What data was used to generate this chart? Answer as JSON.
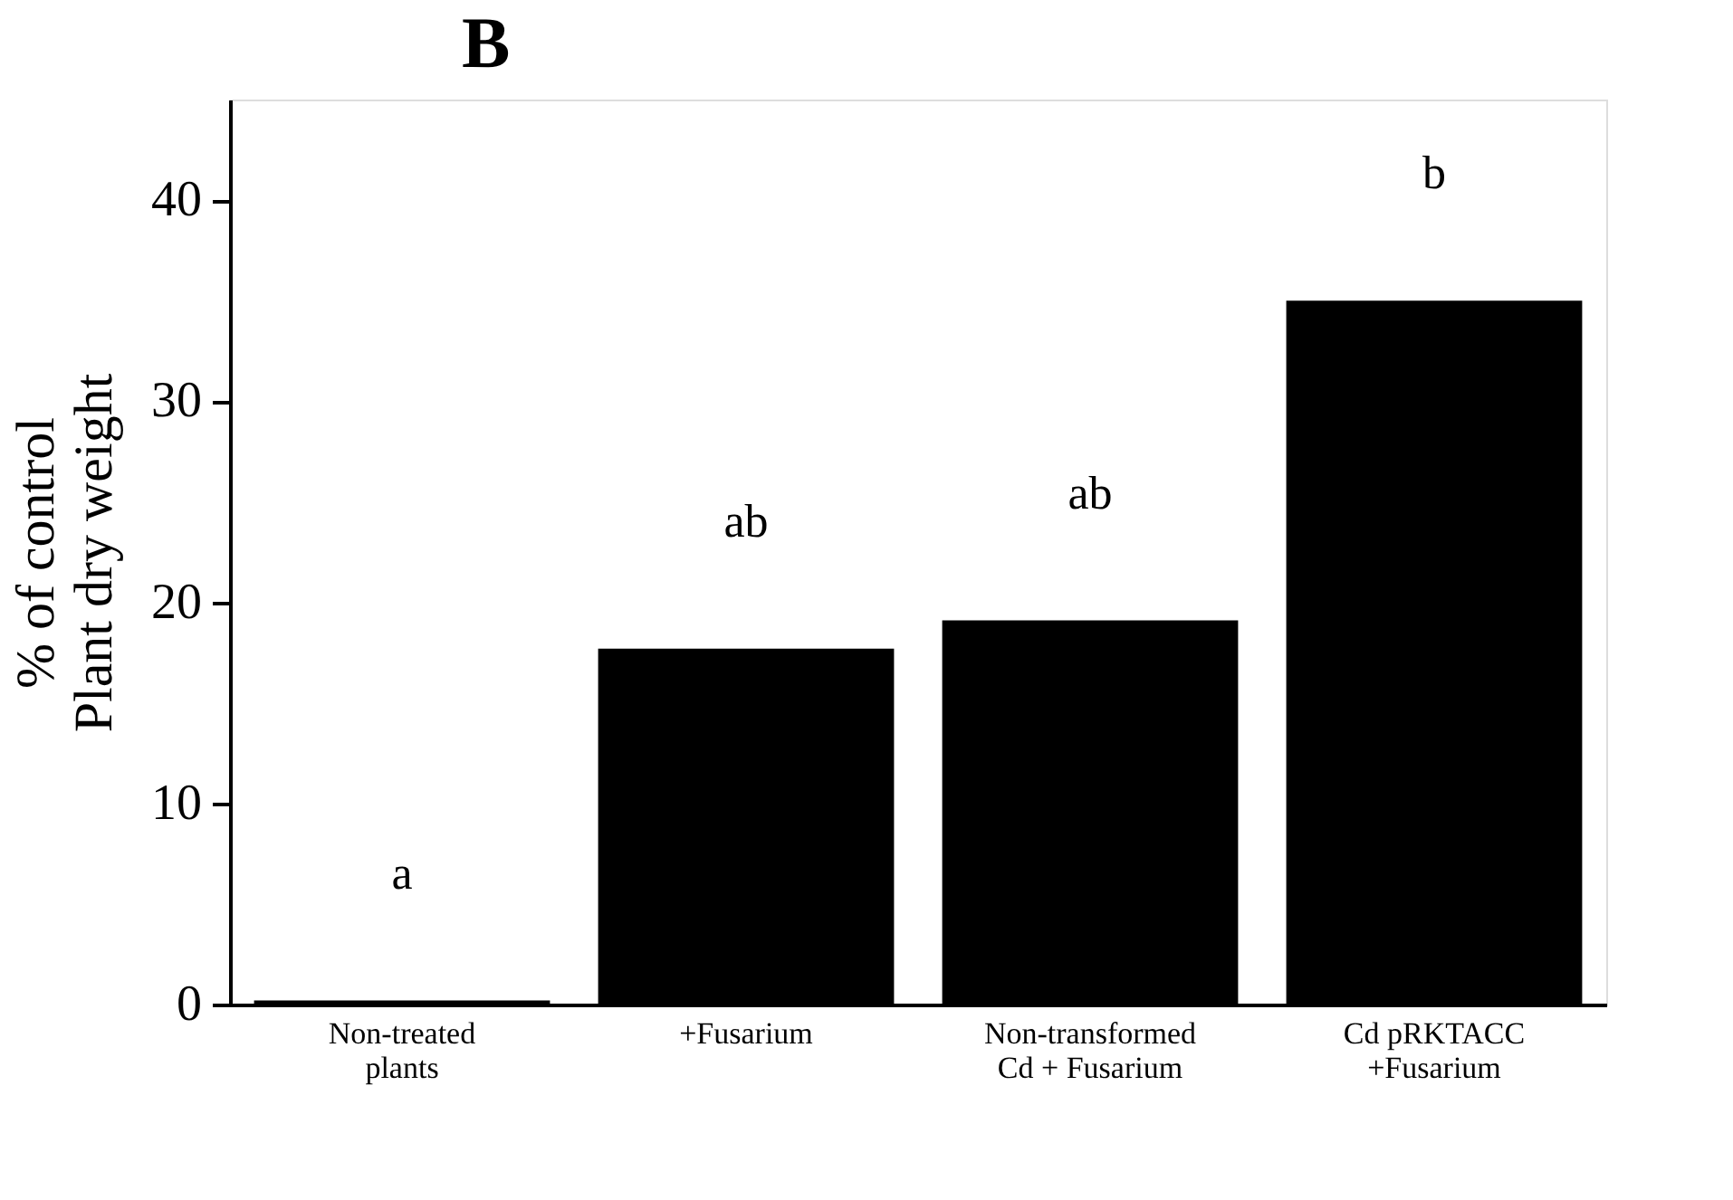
{
  "chart_data": {
    "type": "bar",
    "title": "B",
    "ylabel": "% of control\nPlant dry weight",
    "categories": [
      "Non-treated\nplants",
      "+Fusarium",
      "Non-transformed\nCd + Fusarium",
      "Cd pRKTACC\n+Fusarium"
    ],
    "values": [
      0.2,
      17.7,
      19.1,
      35.0
    ],
    "color": "#000000",
    "ylim": [
      0,
      45
    ],
    "yticks": [
      0,
      10,
      20,
      30,
      40
    ],
    "grid": false,
    "annotations": [
      "a",
      "ab",
      "ab",
      "b"
    ]
  }
}
